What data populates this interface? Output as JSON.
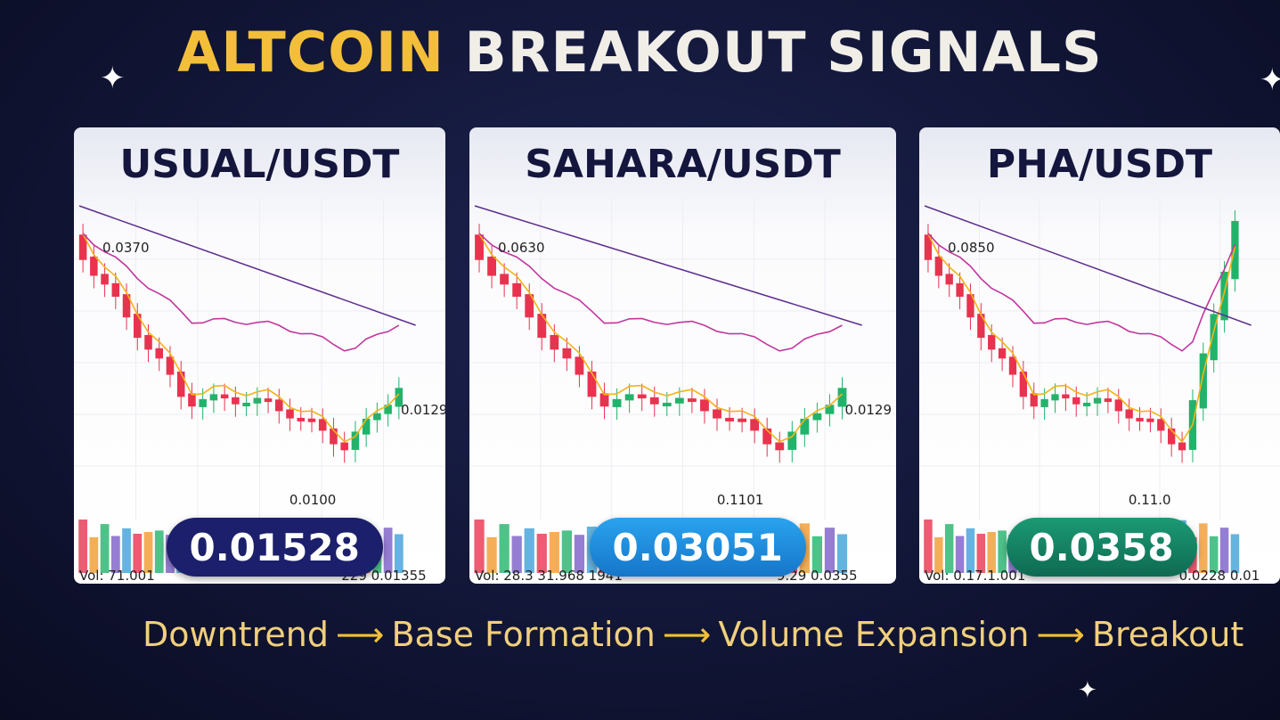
{
  "header": {
    "title_highlight": "ALTCOIN",
    "title_rest": "BREAKOUT SIGNALS"
  },
  "panels": [
    {
      "pair": "USUAL/USDT",
      "high_label": "0.0370",
      "breakout_label": "0.0129",
      "low_label": "0.0100",
      "volume_label": "Vol: 71.001",
      "volume_label_right": "229 0.01355",
      "price": "0.01528"
    },
    {
      "pair": "SAHARA/USDT",
      "high_label": "0.0630",
      "breakout_label": "0.0129",
      "low_label": "0.1101",
      "volume_label": "Vol: 28.3 31.968 1941",
      "volume_label_right": "9.29 0.0355",
      "price": "0.03051"
    },
    {
      "pair": "PHA/USDT",
      "high_label": "0.0850",
      "breakout_label": "",
      "low_label": "0.11.0",
      "volume_label": "Vol: 0.17.1.001",
      "volume_label_right": "0.0228 0.01",
      "price": "0.0358"
    }
  ],
  "footer": {
    "steps": [
      "Downtrend",
      "Base Formation",
      "Volume Expansion",
      "Breakout"
    ]
  }
}
